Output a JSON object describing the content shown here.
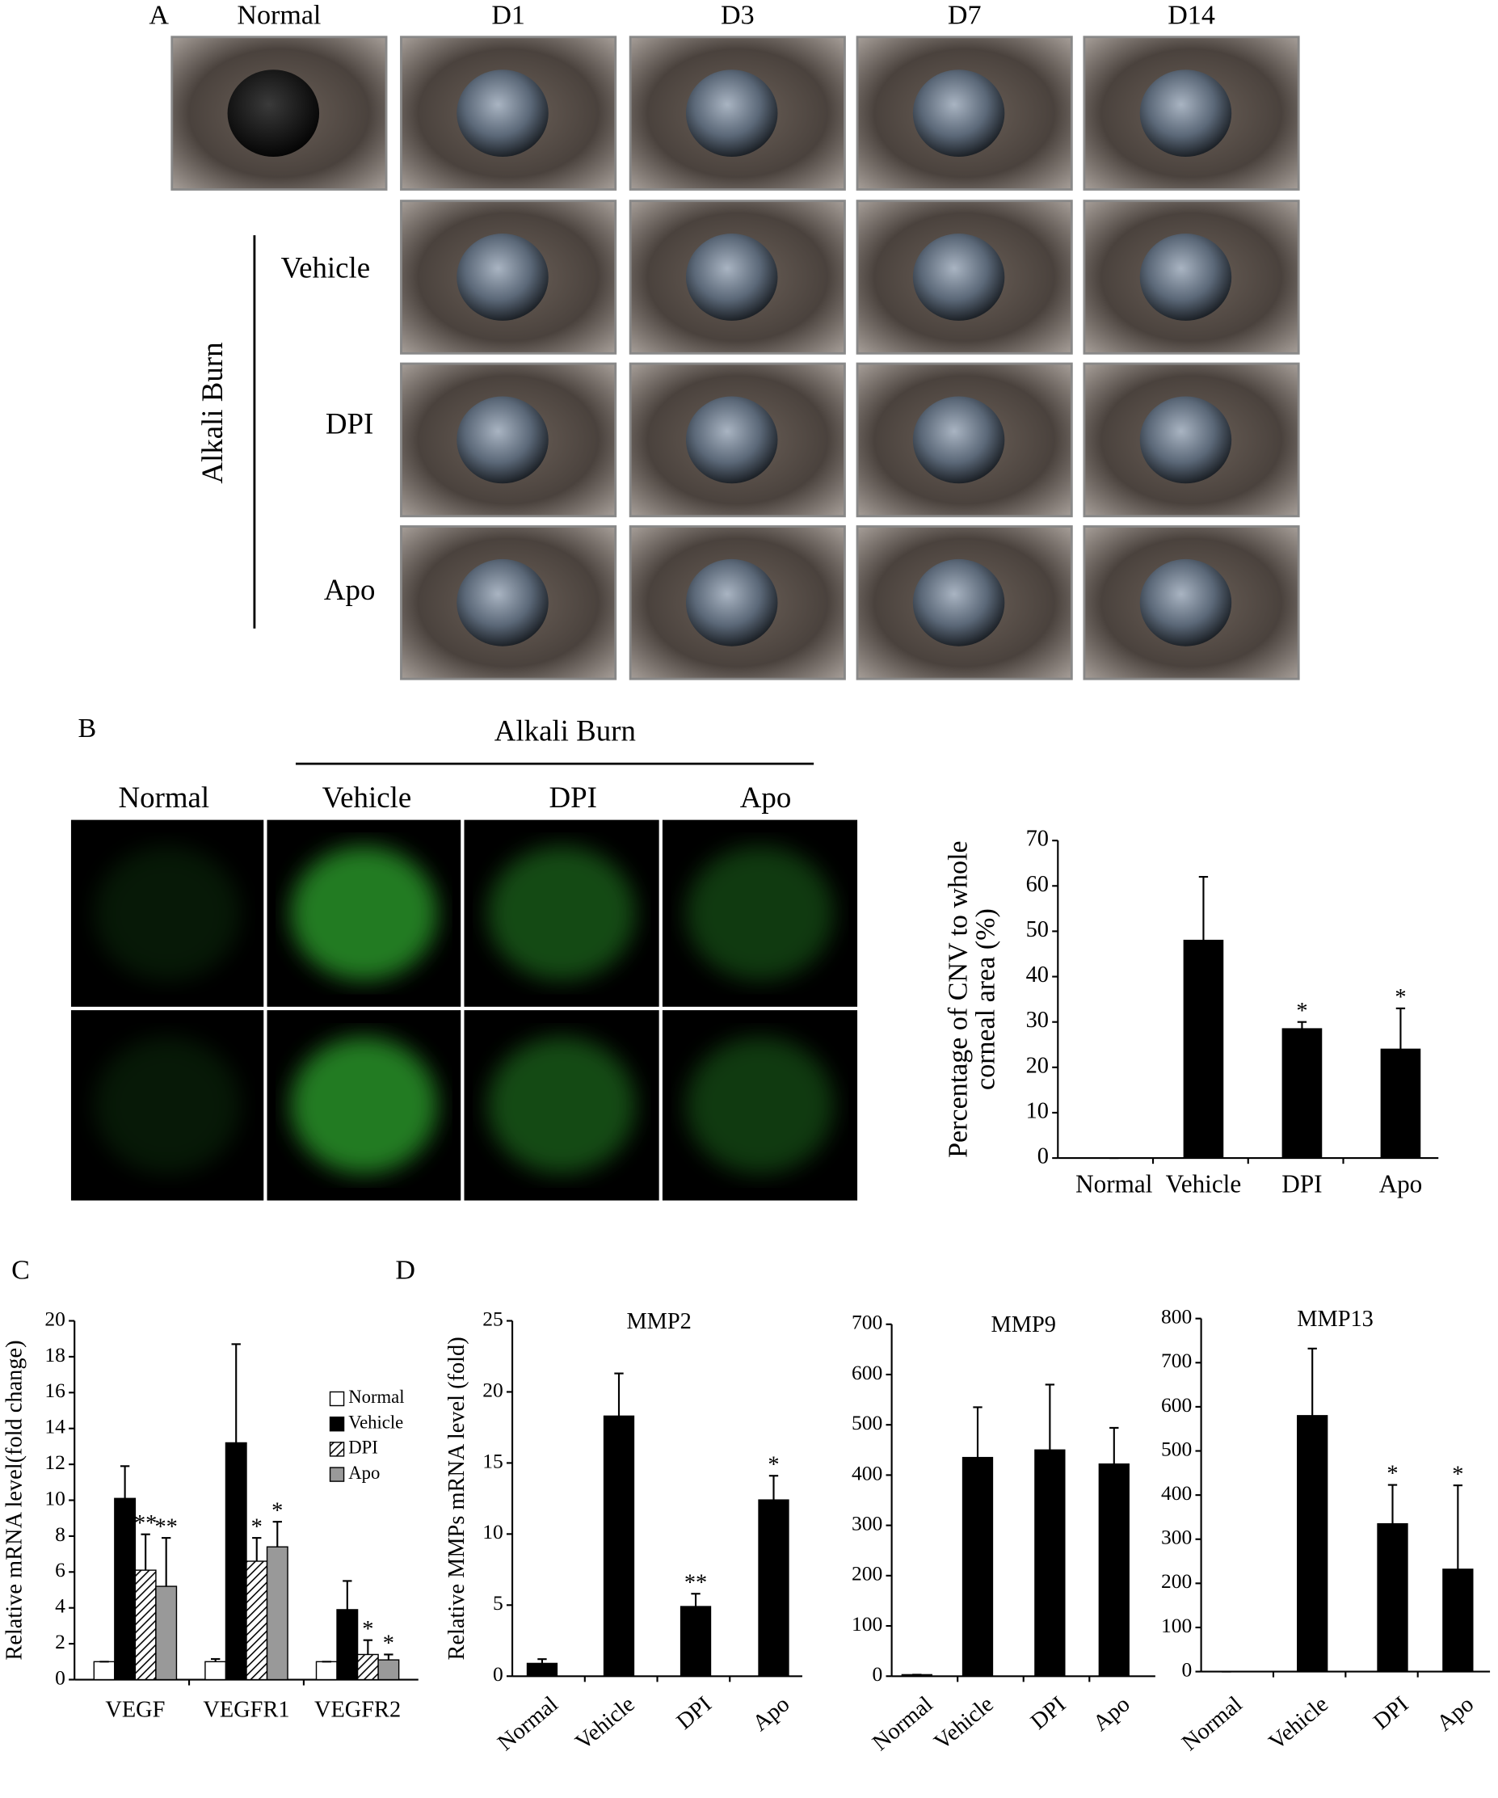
{
  "figure": {
    "panel_a": {
      "label": "A",
      "columns": [
        "Normal",
        "D1",
        "D3",
        "D7",
        "D14"
      ],
      "group": "Alkali Burn",
      "rows": [
        "Vehicle",
        "DPI",
        "Apo"
      ]
    },
    "panel_b": {
      "label": "B",
      "group": "Alkali Burn",
      "columns": [
        "Normal",
        "Vehicle",
        "DPI",
        "Apo"
      ]
    },
    "panel_c": {
      "label": "C"
    },
    "panel_d": {
      "label": "D"
    }
  },
  "chart_data": [
    {
      "type": "bar",
      "ylabel": [
        "Percentage of  CNV to whole",
        "corneal area (%)"
      ],
      "categories": [
        "Normal",
        "Vehicle",
        "DPI",
        "Apo"
      ],
      "values": [
        0,
        48,
        28.5,
        24
      ],
      "errors": [
        0,
        14,
        1.5,
        9
      ],
      "significance": [
        null,
        null,
        "*",
        "*"
      ],
      "color": "#000000",
      "ylim": [
        0,
        70
      ],
      "yticks": [
        0,
        10,
        20,
        30,
        40,
        50,
        60,
        70
      ]
    },
    {
      "type": "grouped-bar",
      "ylabel": [
        "Relative mRNA level(fold change)"
      ],
      "categories": [
        "VEGF",
        "VEGFR1",
        "VEGFR2"
      ],
      "series": [
        {
          "name": "Normal",
          "color": "#ffffff",
          "values": [
            1,
            1,
            1
          ],
          "errors": [
            0,
            0.15,
            0
          ],
          "significance": [
            null,
            null,
            null
          ]
        },
        {
          "name": "Vehicle",
          "color": "#000000",
          "values": [
            10.1,
            13.2,
            3.9
          ],
          "errors": [
            1.8,
            5.5,
            1.6
          ],
          "significance": [
            null,
            null,
            null
          ]
        },
        {
          "name": "DPI",
          "color": "#000000",
          "pattern": "hatch",
          "values": [
            6.1,
            6.6,
            1.4
          ],
          "errors": [
            2,
            1.3,
            0.8
          ],
          "significance": [
            "**",
            "*",
            "*"
          ]
        },
        {
          "name": "Apo",
          "color": "#999999",
          "values": [
            5.2,
            7.4,
            1.1
          ],
          "errors": [
            2.7,
            1.4,
            0.3
          ],
          "significance": [
            "**",
            "*",
            "*"
          ]
        }
      ],
      "ylim": [
        0,
        20
      ],
      "yticks": [
        0,
        2,
        4,
        6,
        8,
        10,
        12,
        14,
        16,
        18,
        20
      ]
    },
    {
      "type": "bar",
      "title": "MMP2",
      "ylabel": [
        "Relative MMPs mRNA level (fold)"
      ],
      "categories": [
        "Normal",
        "Vehicle",
        "DPI",
        "Apo"
      ],
      "values": [
        0.9,
        18.3,
        4.9,
        12.4
      ],
      "errors": [
        0.3,
        3,
        0.9,
        1.7
      ],
      "significance": [
        null,
        null,
        "**",
        "*"
      ],
      "color": "#000000",
      "ylim": [
        0,
        25
      ],
      "yticks": [
        0,
        5,
        10,
        15,
        20,
        25
      ]
    },
    {
      "type": "bar",
      "title": "MMP9",
      "categories": [
        "Normal",
        "Vehicle",
        "DPI",
        "Apo"
      ],
      "values": [
        3,
        435,
        450,
        422
      ],
      "errors": [
        0,
        100,
        130,
        72
      ],
      "significance": [
        null,
        null,
        null,
        null
      ],
      "color": "#000000",
      "ylim": [
        0,
        700
      ],
      "yticks": [
        0,
        100,
        200,
        300,
        400,
        500,
        600,
        700
      ]
    },
    {
      "type": "bar",
      "title": "MMP13",
      "categories": [
        "Normal",
        "Vehicle",
        "DPI",
        "Apo"
      ],
      "values": [
        0,
        580,
        335,
        232
      ],
      "errors": [
        0,
        152,
        88,
        190
      ],
      "significance": [
        null,
        null,
        "*",
        "*"
      ],
      "color": "#000000",
      "ylim": [
        0,
        800
      ],
      "yticks": [
        0,
        100,
        200,
        300,
        400,
        500,
        600,
        700,
        800
      ]
    }
  ]
}
